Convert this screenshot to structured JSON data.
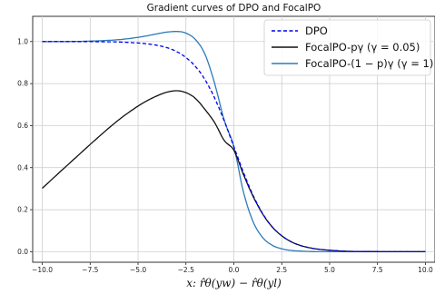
{
  "chart_data": {
    "type": "line",
    "title": "Gradient curves of DPO and FocalPO",
    "xlabel": "x: r̂θ(yw) − r̂θ(yl)",
    "ylabel": "",
    "xlim": [
      -10.5,
      10.5
    ],
    "ylim": [
      -0.05,
      1.12
    ],
    "xticks": [
      -10.0,
      -7.5,
      -5.0,
      -2.5,
      0.0,
      2.5,
      5.0,
      7.5,
      10.0
    ],
    "xtick_labels": [
      "−10.0",
      "−7.5",
      "−5.0",
      "−2.5",
      "0.0",
      "2.5",
      "5.0",
      "7.5",
      "10.0"
    ],
    "yticks": [
      0.0,
      0.2,
      0.4,
      0.6,
      0.8,
      1.0
    ],
    "ytick_labels": [
      "0.0",
      "0.2",
      "0.4",
      "0.6",
      "0.8",
      "1.0"
    ],
    "grid": true,
    "legend_position": "top-right",
    "series": [
      {
        "name": "DPO",
        "color": "#0000ee",
        "dash": "dashed",
        "x": [
          -10,
          -9,
          -8,
          -7,
          -6,
          -5,
          -4.5,
          -4,
          -3.5,
          -3,
          -2.5,
          -2,
          -1.5,
          -1,
          -0.5,
          0,
          0.5,
          1,
          1.5,
          2,
          2.5,
          3,
          3.5,
          4,
          4.5,
          5,
          6,
          7,
          8,
          9,
          10
        ],
        "y": [
          1.0,
          1.0,
          1.0,
          0.999,
          0.998,
          0.993,
          0.989,
          0.982,
          0.971,
          0.953,
          0.924,
          0.881,
          0.818,
          0.731,
          0.622,
          0.5,
          0.378,
          0.269,
          0.182,
          0.119,
          0.076,
          0.047,
          0.029,
          0.018,
          0.011,
          0.007,
          0.002,
          0.001,
          0.0,
          0.0,
          0.0
        ]
      },
      {
        "name": "FocalPO-pγ (γ = 0.05)",
        "color": "#111111",
        "dash": "solid",
        "x": [
          -10,
          -9,
          -8,
          -7,
          -6,
          -5,
          -4.5,
          -4,
          -3.5,
          -3,
          -2.5,
          -2,
          -1.5,
          -1,
          -0.5,
          0,
          0.5,
          1,
          1.5,
          2,
          2.5,
          3,
          3.5,
          4,
          4.5,
          5,
          6,
          7,
          8,
          9,
          10
        ],
        "y": [
          0.302,
          0.386,
          0.469,
          0.551,
          0.628,
          0.693,
          0.72,
          0.742,
          0.759,
          0.766,
          0.757,
          0.729,
          0.676,
          0.614,
          0.529,
          0.483,
          0.368,
          0.264,
          0.18,
          0.118,
          0.076,
          0.047,
          0.029,
          0.018,
          0.011,
          0.007,
          0.002,
          0.001,
          0.0,
          0.0,
          0.0
        ]
      },
      {
        "name": "FocalPO-(1 − p)γ (γ = 1)",
        "color": "#2b7bb9",
        "dash": "solid",
        "x": [
          -10,
          -9,
          -8,
          -7,
          -6,
          -5,
          -4.5,
          -4,
          -3.5,
          -3,
          -2.5,
          -2,
          -1.5,
          -1,
          -0.5,
          0,
          0.5,
          1,
          1.5,
          2,
          2.5,
          3,
          3.5,
          4,
          4.5,
          5,
          6,
          7,
          8,
          9,
          10
        ],
        "y": [
          1.0,
          1.0,
          1.001,
          1.004,
          1.009,
          1.02,
          1.028,
          1.037,
          1.045,
          1.048,
          1.04,
          1.009,
          0.938,
          0.8,
          0.625,
          0.5,
          0.285,
          0.144,
          0.068,
          0.031,
          0.014,
          0.006,
          0.003,
          0.001,
          0.0,
          0.0,
          0.0,
          0.0,
          0.0,
          0.0,
          0.0
        ]
      }
    ]
  }
}
